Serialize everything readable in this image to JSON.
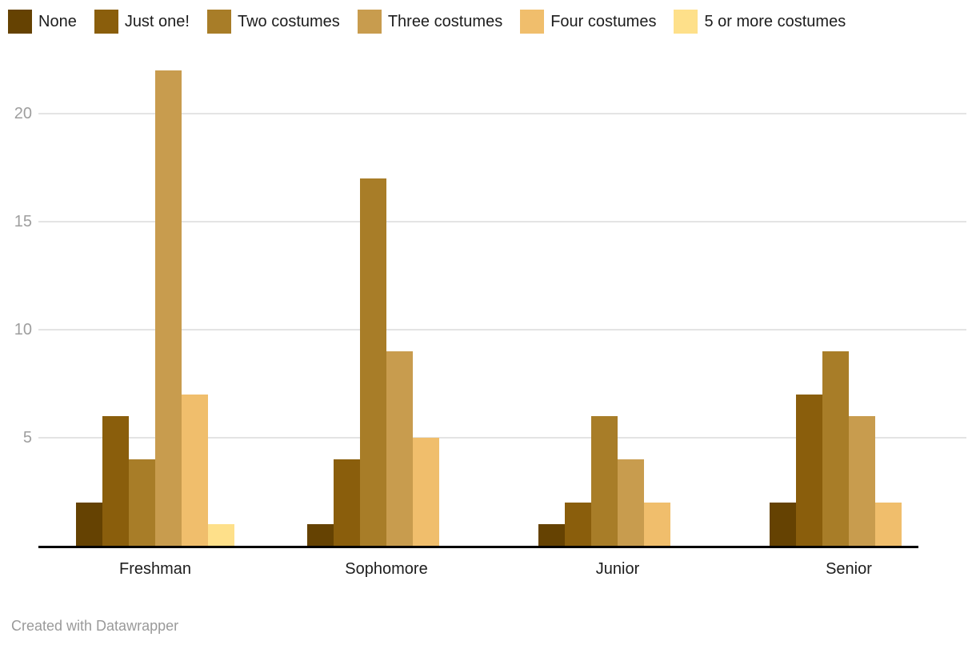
{
  "chart_data": {
    "type": "bar",
    "title": "",
    "categories": [
      "Freshman",
      "Sophomore",
      "Junior",
      "Senior"
    ],
    "series": [
      {
        "name": "None",
        "color": "#654202",
        "values": [
          2,
          1,
          1,
          2
        ]
      },
      {
        "name": "Just one!",
        "color": "#8a5e0c",
        "values": [
          6,
          4,
          2,
          7
        ]
      },
      {
        "name": "Two costumes",
        "color": "#a87d28",
        "values": [
          4,
          17,
          6,
          9
        ]
      },
      {
        "name": "Three costumes",
        "color": "#c89c4e",
        "values": [
          22,
          9,
          4,
          6
        ]
      },
      {
        "name": "Four costumes",
        "color": "#f0be6c",
        "values": [
          7,
          5,
          2,
          2
        ]
      },
      {
        "name": "5 or more costumes",
        "color": "#fee08a",
        "values": [
          1,
          0,
          0,
          0
        ]
      }
    ],
    "y_ticks": [
      5,
      10,
      15,
      20
    ],
    "ylim": [
      0,
      22.5
    ],
    "grid": true,
    "legend_position": "top",
    "xlabel": "",
    "ylabel": ""
  },
  "style_colors": {
    "gridline": "#e4e4e4",
    "tick_text": "#9e9e9e",
    "axis_text": "#1d1d1d",
    "axis_line": "#000000",
    "footer_text": "#9a9a9a"
  },
  "footer": {
    "credit": "Created with Datawrapper"
  }
}
